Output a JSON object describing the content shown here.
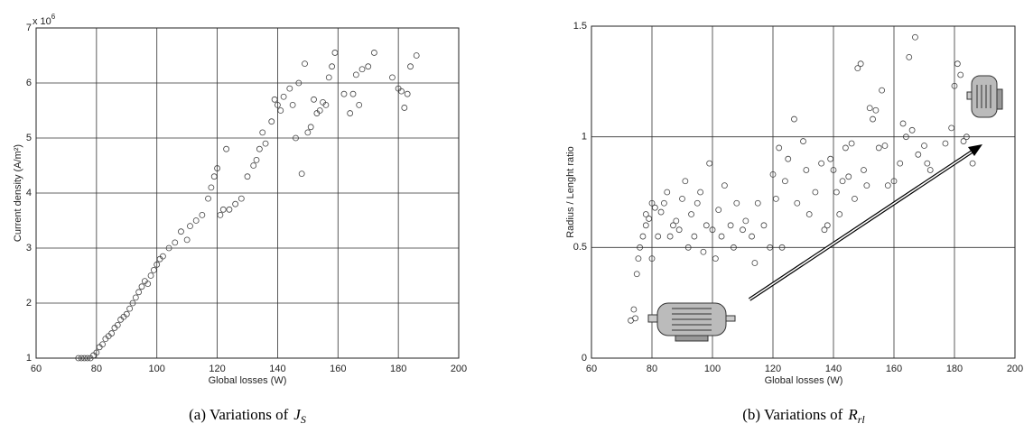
{
  "chart_data": [
    {
      "type": "scatter",
      "xlabel": "Global losses (W)",
      "ylabel": "Current density (A/m²)",
      "y_multiplier": "x 10",
      "y_multiplier_power": "6",
      "caption": "(a) Variations of",
      "caption_symbol": "J",
      "caption_subscript": "S",
      "xlim": [
        60,
        200
      ],
      "xticks": [
        60,
        80,
        100,
        120,
        140,
        160,
        180,
        200
      ],
      "ylim": [
        1,
        7
      ],
      "yticks": [
        1,
        2,
        3,
        4,
        5,
        6,
        7
      ],
      "grid": true,
      "color": "#444444",
      "x": [
        74,
        75,
        76,
        77,
        78,
        79,
        80,
        81,
        82,
        83,
        84,
        85,
        86,
        87,
        88,
        89,
        90,
        91,
        92,
        93,
        94,
        95,
        96,
        97,
        98,
        99,
        100,
        101,
        102,
        104,
        106,
        108,
        110,
        111,
        113,
        115,
        117,
        118,
        119,
        120,
        121,
        122,
        123,
        124,
        126,
        128,
        130,
        132,
        133,
        134,
        135,
        136,
        138,
        139,
        140,
        141,
        142,
        144,
        145,
        146,
        147,
        148,
        149,
        150,
        151,
        152,
        153,
        154,
        155,
        156,
        157,
        158,
        159,
        162,
        164,
        165,
        166,
        167,
        168,
        170,
        172,
        178,
        180,
        181,
        182,
        183,
        184,
        186
      ],
      "values": [
        1.0,
        1.0,
        1.0,
        1.0,
        1.0,
        1.05,
        1.1,
        1.2,
        1.25,
        1.35,
        1.4,
        1.45,
        1.55,
        1.6,
        1.7,
        1.75,
        1.8,
        1.9,
        2.0,
        2.1,
        2.2,
        2.3,
        2.4,
        2.35,
        2.5,
        2.6,
        2.7,
        2.8,
        2.85,
        3.0,
        3.1,
        3.3,
        3.15,
        3.4,
        3.5,
        3.6,
        3.9,
        4.1,
        4.3,
        4.45,
        3.6,
        3.7,
        4.8,
        3.7,
        3.8,
        3.9,
        4.3,
        4.5,
        4.6,
        4.8,
        5.1,
        4.9,
        5.3,
        5.7,
        5.6,
        5.5,
        5.75,
        5.9,
        5.6,
        5.0,
        6.0,
        4.35,
        6.35,
        5.1,
        5.2,
        5.7,
        5.45,
        5.5,
        5.65,
        5.6,
        6.1,
        6.3,
        6.55,
        5.8,
        5.45,
        5.8,
        6.15,
        5.6,
        6.25,
        6.3,
        6.55,
        6.1,
        5.9,
        5.85,
        5.55,
        5.8,
        6.3,
        6.5
      ]
    },
    {
      "type": "scatter",
      "xlabel": "Global losses (W)",
      "ylabel": "Radius / Lenght ratio",
      "caption": "(b) Variations of",
      "caption_symbol": "R",
      "caption_subscript": "rl",
      "xlim": [
        60,
        200
      ],
      "xticks": [
        60,
        80,
        100,
        120,
        140,
        160,
        180,
        200
      ],
      "ylim": [
        0,
        1.5
      ],
      "yticks": [
        0,
        0.5,
        1,
        1.5
      ],
      "grid": true,
      "color": "#444444",
      "x": [
        73,
        74,
        74.5,
        75,
        75.5,
        76,
        77,
        78,
        78,
        79,
        80,
        80,
        81,
        82,
        83,
        84,
        85,
        86,
        87,
        88,
        89,
        90,
        91,
        92,
        93,
        94,
        95,
        96,
        97,
        98,
        99,
        100,
        101,
        102,
        103,
        104,
        106,
        107,
        108,
        110,
        111,
        113,
        114,
        115,
        117,
        119,
        120,
        121,
        122,
        123,
        124,
        125,
        127,
        128,
        130,
        131,
        132,
        134,
        136,
        137,
        138,
        139,
        140,
        141,
        142,
        143,
        144,
        145,
        146,
        147,
        148,
        149,
        150,
        151,
        152,
        153,
        154,
        155,
        156,
        157,
        158,
        160,
        162,
        163,
        164,
        165,
        166,
        167,
        168,
        170,
        171,
        172,
        177,
        179,
        180,
        181,
        182,
        183,
        184,
        186
      ],
      "values": [
        0.17,
        0.22,
        0.18,
        0.38,
        0.45,
        0.5,
        0.55,
        0.6,
        0.65,
        0.63,
        0.7,
        0.45,
        0.68,
        0.55,
        0.66,
        0.7,
        0.75,
        0.55,
        0.6,
        0.62,
        0.58,
        0.72,
        0.8,
        0.5,
        0.65,
        0.55,
        0.7,
        0.75,
        0.48,
        0.6,
        0.88,
        0.58,
        0.45,
        0.67,
        0.55,
        0.78,
        0.6,
        0.5,
        0.7,
        0.58,
        0.62,
        0.55,
        0.43,
        0.7,
        0.6,
        0.5,
        0.83,
        0.72,
        0.95,
        0.5,
        0.8,
        0.9,
        1.08,
        0.7,
        0.98,
        0.85,
        0.65,
        0.75,
        0.88,
        0.58,
        0.6,
        0.9,
        0.85,
        0.75,
        0.65,
        0.8,
        0.95,
        0.82,
        0.97,
        0.72,
        1.31,
        1.33,
        0.85,
        0.78,
        1.13,
        1.08,
        1.12,
        0.95,
        1.21,
        0.96,
        0.78,
        0.8,
        0.88,
        1.06,
        1.0,
        1.36,
        1.03,
        1.45,
        0.92,
        0.96,
        0.88,
        0.85,
        0.97,
        1.04,
        1.23,
        1.33,
        1.28,
        0.98,
        1.0,
        0.88
      ]
    }
  ]
}
